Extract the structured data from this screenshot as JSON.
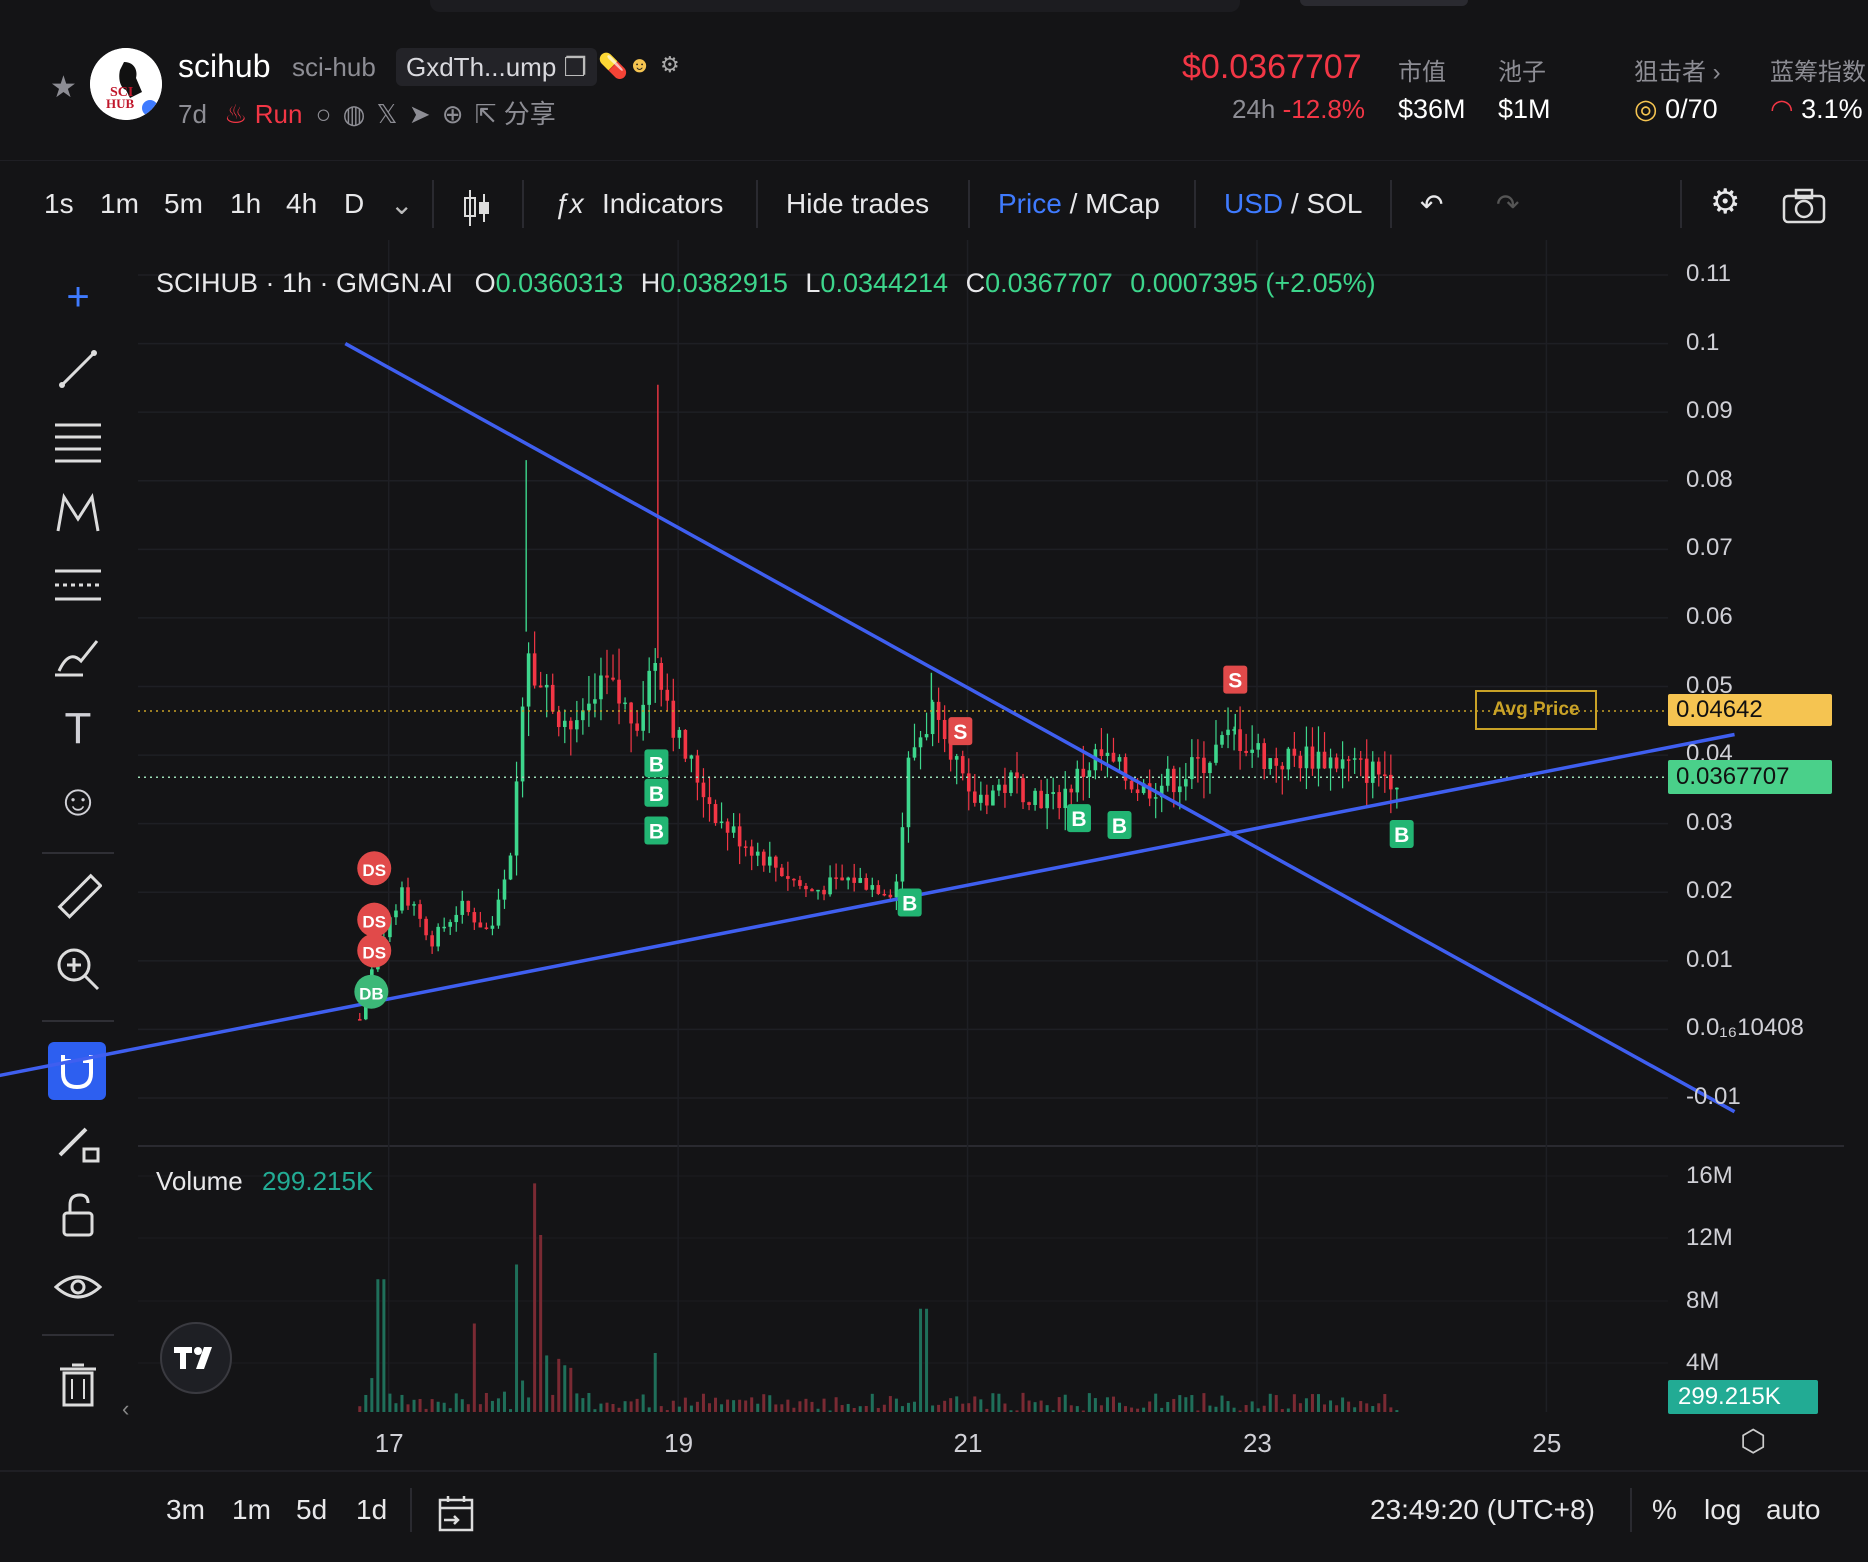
{
  "header": {
    "token_name": "scihub",
    "token_symbol": "sci-hub",
    "contract_short": "GxdTh...ump",
    "age": "7d",
    "run_label": "Run",
    "share_label": "分享",
    "price": "$0.0367707",
    "change_label": "24h",
    "change_value": "-12.8%",
    "mcap_label": "市值",
    "mcap_value": "$36M",
    "pool_label": "池子",
    "pool_value": "$1M",
    "sniper_label": "狙击者",
    "sniper_value": "0/70",
    "bluechip_label": "蓝筹指数",
    "bluechip_value": "3.1%",
    "avatar_text_1": "SCI",
    "avatar_text_2": "HUB"
  },
  "toolbar": {
    "timeframes": [
      "1s",
      "1m",
      "5m",
      "1h",
      "4h",
      "D"
    ],
    "active_timeframe": "1h",
    "indicators_label": "Indicators",
    "hide_trades_label": "Hide trades",
    "price_label": "Price",
    "mcap_label": "MCap",
    "usd_label": "USD",
    "sol_label": "SOL",
    "slash": "/"
  },
  "legend": {
    "symbol_line": "SCIHUB · 1h · GMGN.AI",
    "o_label": "O",
    "o_value": "0.0360313",
    "h_label": "H",
    "h_value": "0.0382915",
    "l_label": "L",
    "l_value": "0.0344214",
    "c_label": "C",
    "c_value": "0.0367707",
    "change": "0.0007395 (+2.05%)"
  },
  "volume_legend": {
    "label": "Volume",
    "value": "299.215K"
  },
  "price_axis": [
    "0.11",
    "0.1",
    "0.09",
    "0.08",
    "0.07",
    "0.06",
    "0.05",
    "0.04",
    "0.03",
    "0.02",
    "0.01",
    "0.0₁₆10408",
    "-0.01"
  ],
  "volume_axis": [
    "16M",
    "12M",
    "8M",
    "4M"
  ],
  "date_axis": [
    "17",
    "19",
    "21",
    "23",
    "25"
  ],
  "price_tags": {
    "avg_label": "Avg Price",
    "avg_value": "0.04642",
    "current_value": "0.0367707",
    "volume_value": "299.215K"
  },
  "trade_markers": [
    "DS",
    "DS",
    "DS",
    "DB",
    "B",
    "B",
    "B",
    "B",
    "S",
    "B",
    "B",
    "S",
    "B"
  ],
  "bottom": {
    "ranges": [
      "3m",
      "1m",
      "5d",
      "1d"
    ],
    "clock": "23:49:20 (UTC+8)",
    "percent": "%",
    "log": "log",
    "auto": "auto"
  },
  "colors": {
    "up": "#3dd68c",
    "down": "#f23645",
    "trendline": "#3f5ff0",
    "avg_tag": "#f5c451",
    "current_tag": "#4ad08a"
  },
  "chart_data": {
    "type": "candlestick",
    "title": "SCIHUB · 1h · GMGN.AI",
    "x_ticks": [
      "17",
      "19",
      "21",
      "23",
      "25"
    ],
    "ylim": [
      -0.01,
      0.11
    ],
    "avg_price": 0.04642,
    "last_price": 0.0367707,
    "trendlines": [
      {
        "name": "descending",
        "from": {
          "day": 16.7,
          "price": 0.1
        },
        "to": {
          "day": 26.3,
          "price": -0.012
        }
      },
      {
        "name": "ascending",
        "from": {
          "day": 14.0,
          "price": -0.008
        },
        "to": {
          "day": 26.3,
          "price": 0.043
        }
      }
    ],
    "price_path": [
      {
        "day": 16.8,
        "price": 0.0015
      },
      {
        "day": 16.9,
        "price": 0.01
      },
      {
        "day": 17.1,
        "price": 0.02
      },
      {
        "day": 17.3,
        "price": 0.013
      },
      {
        "day": 17.5,
        "price": 0.018
      },
      {
        "day": 17.7,
        "price": 0.014
      },
      {
        "day": 17.85,
        "price": 0.025
      },
      {
        "day": 17.95,
        "price": 0.058
      },
      {
        "day": 18.05,
        "price": 0.05
      },
      {
        "day": 18.3,
        "price": 0.043
      },
      {
        "day": 18.5,
        "price": 0.05
      },
      {
        "day": 18.7,
        "price": 0.045
      },
      {
        "day": 18.85,
        "price": 0.055
      },
      {
        "day": 19.0,
        "price": 0.042
      },
      {
        "day": 19.3,
        "price": 0.03
      },
      {
        "day": 19.6,
        "price": 0.025
      },
      {
        "day": 19.9,
        "price": 0.02
      },
      {
        "day": 20.2,
        "price": 0.022
      },
      {
        "day": 20.5,
        "price": 0.02
      },
      {
        "day": 20.6,
        "price": 0.04
      },
      {
        "day": 20.8,
        "price": 0.048
      },
      {
        "day": 21.0,
        "price": 0.033
      },
      {
        "day": 21.3,
        "price": 0.036
      },
      {
        "day": 21.6,
        "price": 0.033
      },
      {
        "day": 21.9,
        "price": 0.04
      },
      {
        "day": 22.2,
        "price": 0.035
      },
      {
        "day": 22.5,
        "price": 0.037
      },
      {
        "day": 22.85,
        "price": 0.043
      },
      {
        "day": 23.1,
        "price": 0.039
      },
      {
        "day": 23.4,
        "price": 0.04
      },
      {
        "day": 23.7,
        "price": 0.038
      },
      {
        "day": 24.0,
        "price": 0.0367707
      }
    ],
    "volume_peaks": [
      {
        "day": 16.95,
        "volume": 9000000
      },
      {
        "day": 17.9,
        "volume": 10000000
      },
      {
        "day": 18.0,
        "volume": 15500000
      },
      {
        "day": 18.05,
        "volume": 12000000
      },
      {
        "day": 17.6,
        "volume": 6000000
      },
      {
        "day": 18.85,
        "volume": 4000000
      },
      {
        "day": 20.7,
        "volume": 7000000
      }
    ]
  }
}
